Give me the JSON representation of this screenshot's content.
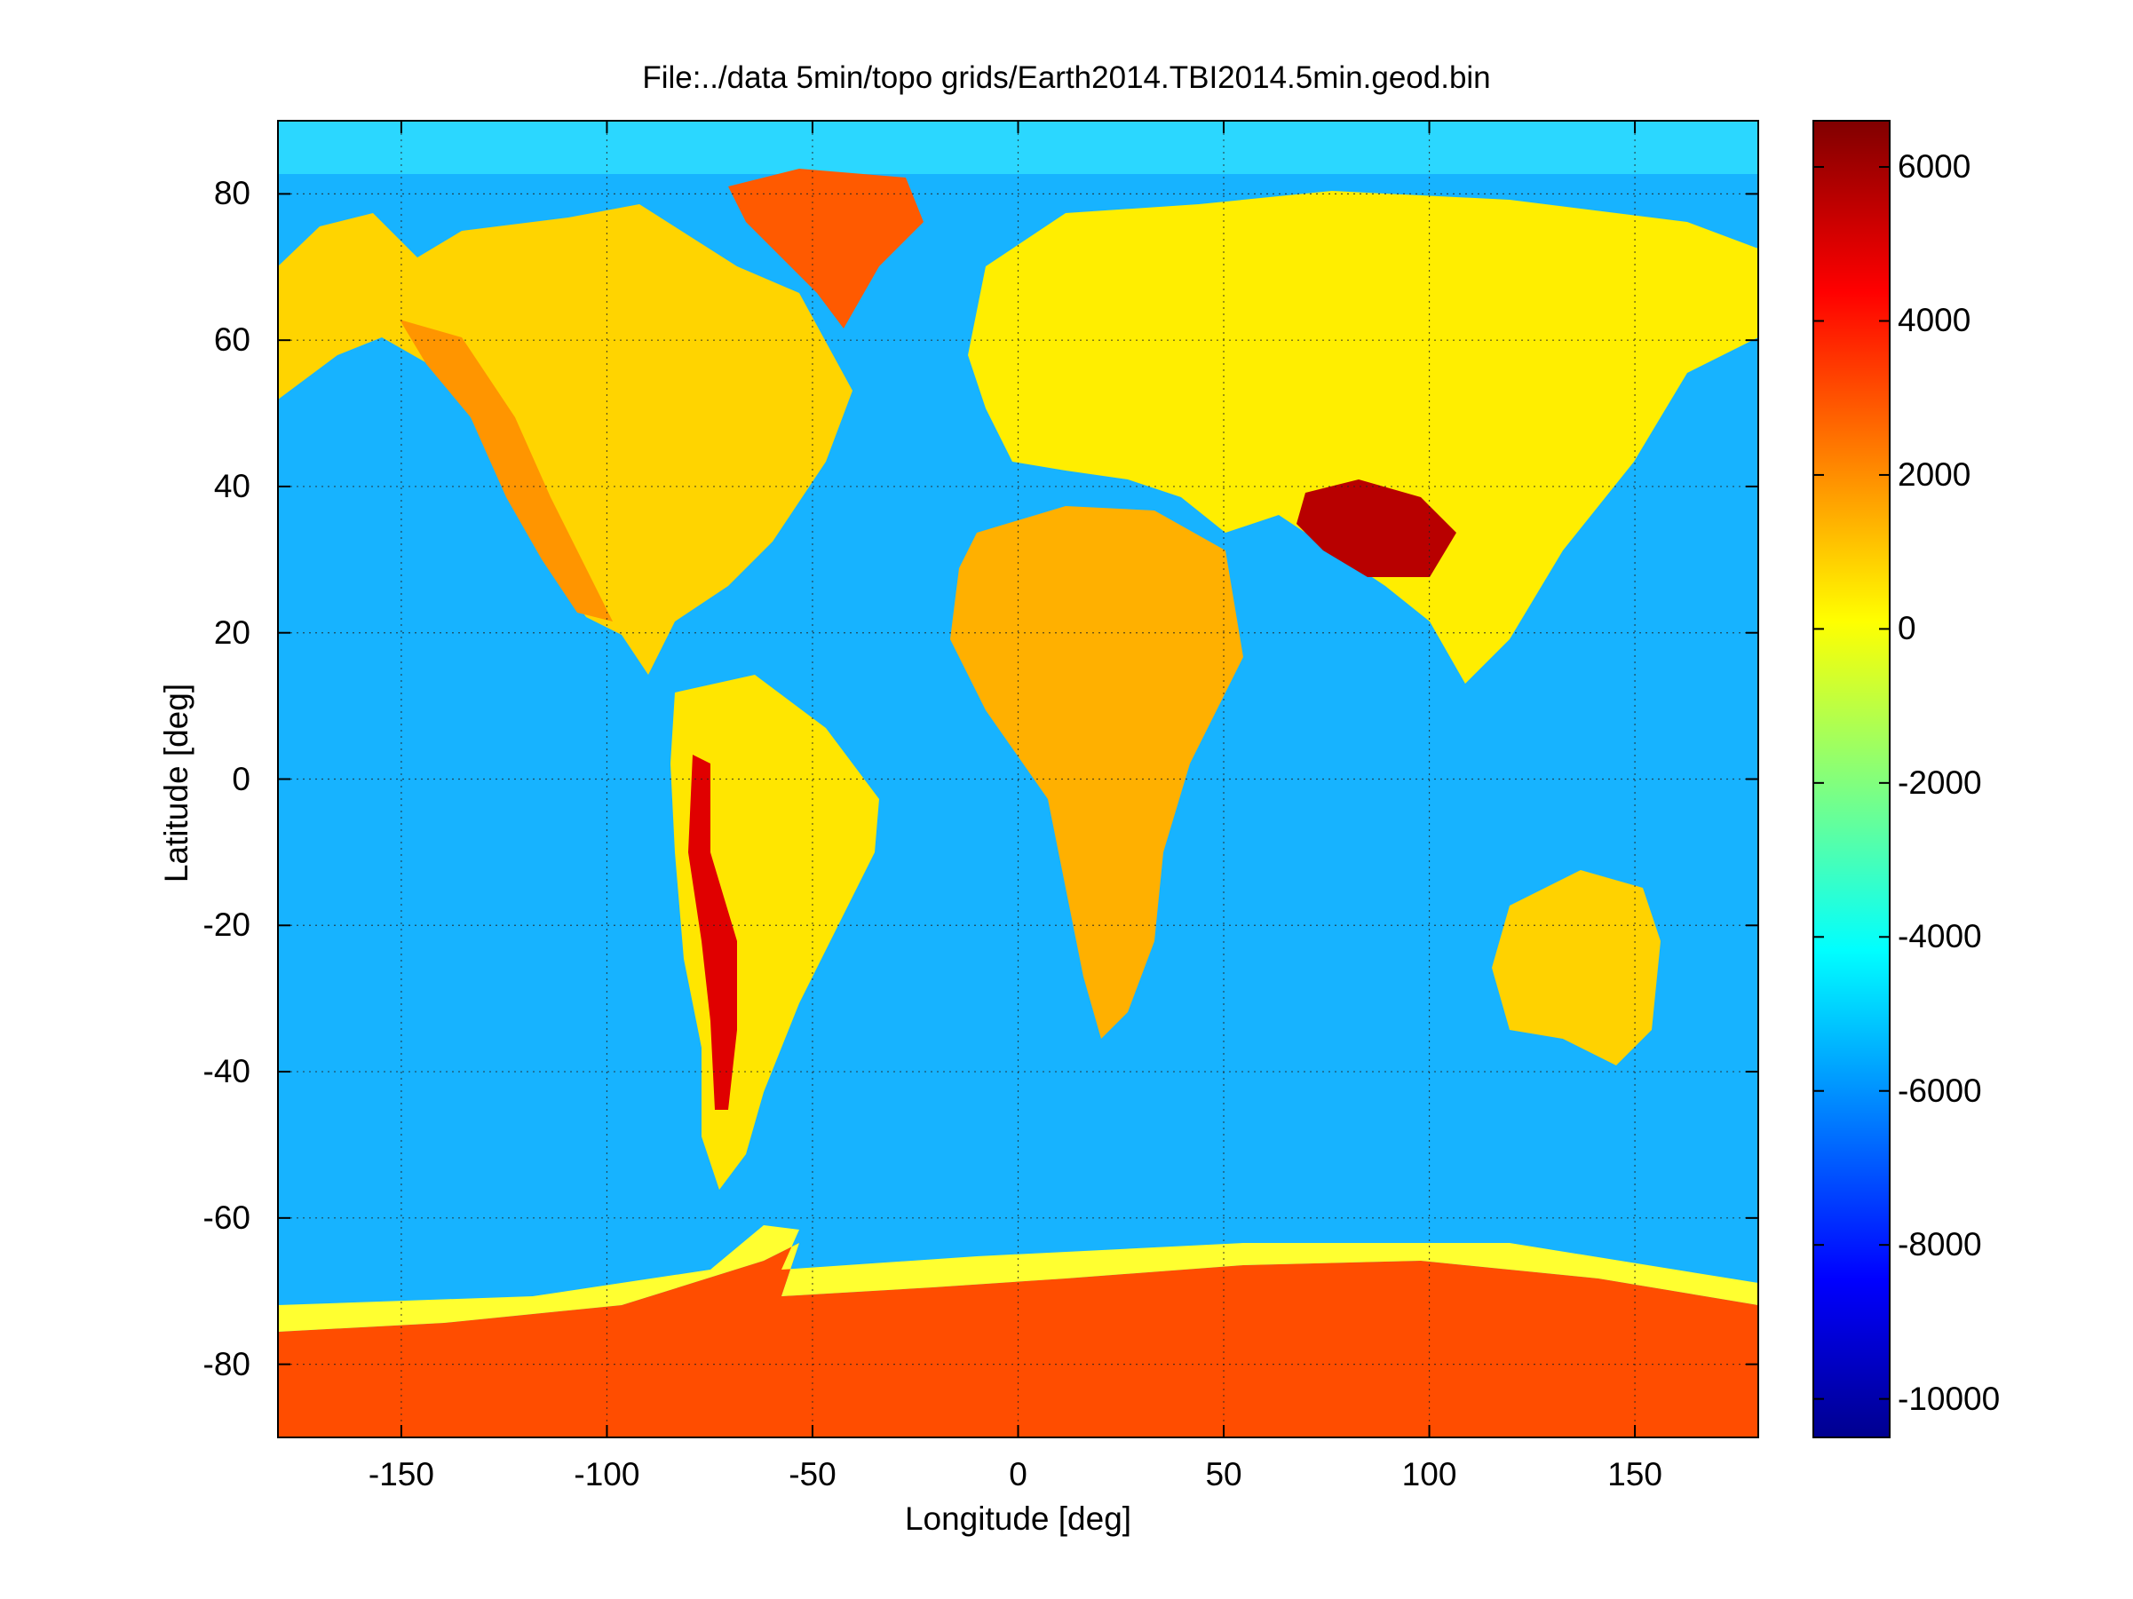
{
  "chart_data": {
    "type": "heatmap",
    "title": "File:../data 5min/topo grids/Earth2014.TBI2014.5min.geod.bin",
    "xlabel": "Longitude [deg]",
    "ylabel": "Latitude [deg]",
    "xlim": [
      -180,
      180
    ],
    "ylim": [
      -90,
      90
    ],
    "xticks": [
      -150,
      -100,
      -50,
      0,
      50,
      100,
      150
    ],
    "xtick_labels": [
      "-150",
      "-100",
      "-50",
      "0",
      "50",
      "100",
      "150"
    ],
    "yticks": [
      80,
      60,
      40,
      20,
      0,
      -20,
      -40,
      -60,
      -80
    ],
    "ytick_labels": [
      "80",
      "60",
      "40",
      "20",
      "0",
      "-20",
      "-40",
      "-60",
      "-80"
    ],
    "grid": true,
    "colormap": "jet",
    "colorbar": {
      "position": "right",
      "range": [
        -10500,
        6600
      ],
      "ticks": [
        6000,
        4000,
        2000,
        0,
        -2000,
        -4000,
        -6000,
        -8000,
        -10000
      ],
      "tick_labels": [
        "6000",
        "4000",
        "2000",
        "0",
        "-2000",
        "-4000",
        "-6000",
        "-8000",
        "-10000"
      ]
    },
    "regions": [
      {
        "name": "ocean",
        "value": -4500,
        "color": "#17b3ff"
      },
      {
        "name": "north-america",
        "value": 500,
        "color": "#ffd400"
      },
      {
        "name": "rockies",
        "value": 2000,
        "color": "#ff9500"
      },
      {
        "name": "greenland",
        "value": 3000,
        "color": "#ff5a00"
      },
      {
        "name": "south-america",
        "value": 300,
        "color": "#ffe600"
      },
      {
        "name": "andes",
        "value": 4500,
        "color": "#e00000"
      },
      {
        "name": "eurasia",
        "value": 300,
        "color": "#ffee00"
      },
      {
        "name": "tibet",
        "value": 5000,
        "color": "#b80000"
      },
      {
        "name": "africa",
        "value": 800,
        "color": "#ffb000"
      },
      {
        "name": "australia",
        "value": 300,
        "color": "#ffd200"
      },
      {
        "name": "antarctica",
        "value": 2800,
        "color": "#ff4d00"
      },
      {
        "name": "continental-shelf",
        "value": -200,
        "color": "#ffff30"
      }
    ]
  }
}
